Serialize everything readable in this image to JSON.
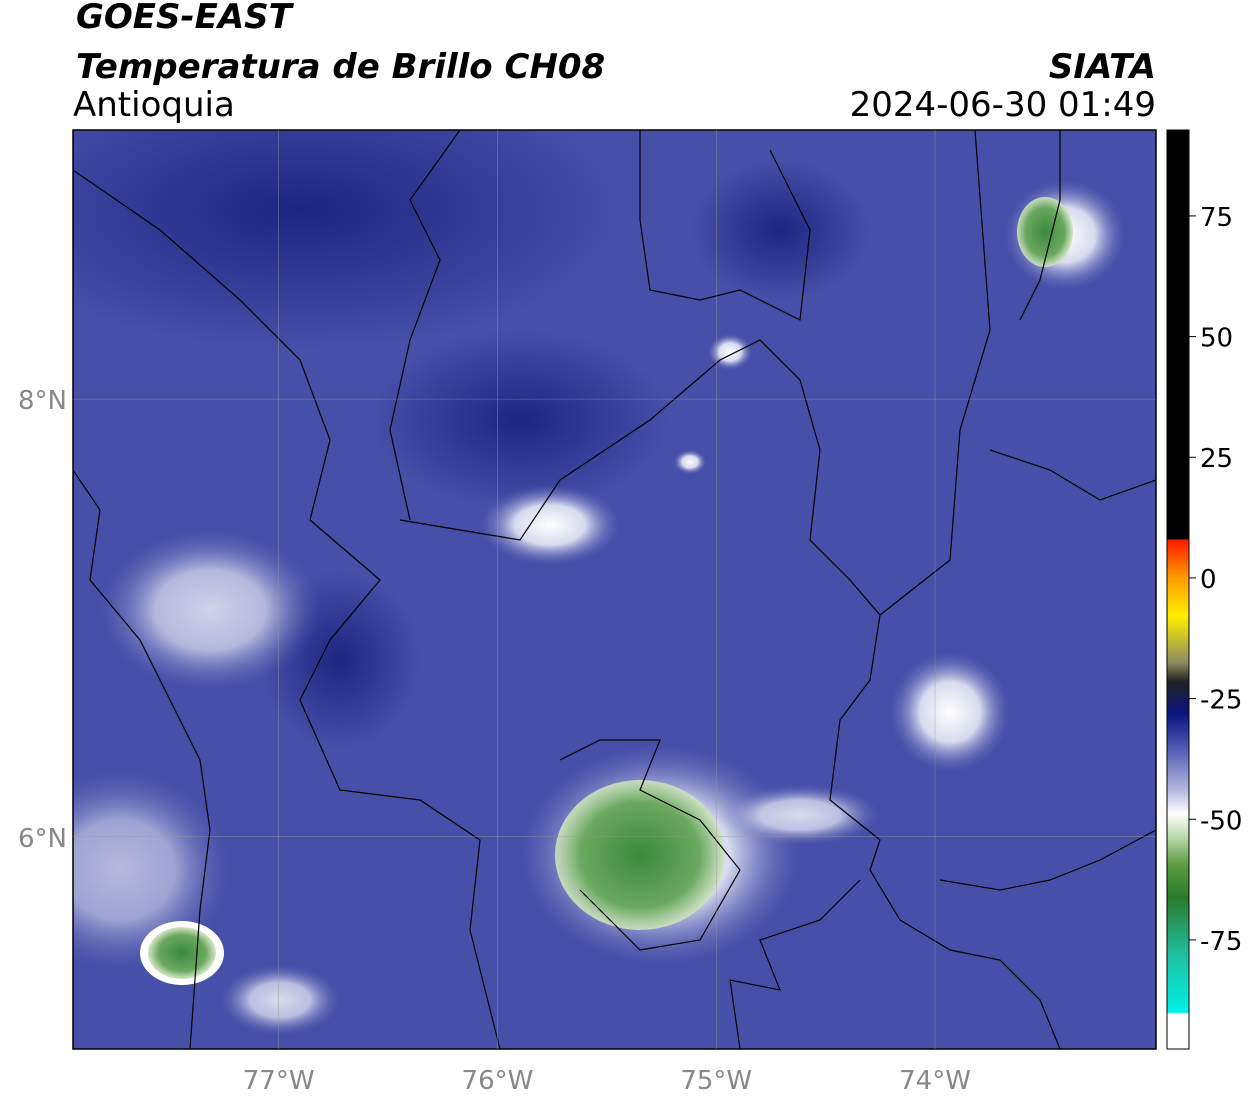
{
  "map": {
    "title": "GOES-EAST",
    "subtitle": "Temperatura de Brillo CH08",
    "region": "Antioquia",
    "source": "SIATA",
    "timestamp": "2024-06-30 01:49",
    "xlim": [
      -77.94,
      -72.99
    ],
    "ylim": [
      5.03,
      9.23
    ],
    "xticks": [
      {
        "value": -77,
        "label": "77°W"
      },
      {
        "value": -76,
        "label": "76°W"
      },
      {
        "value": -75,
        "label": "75°W"
      },
      {
        "value": -74,
        "label": "74°W"
      }
    ],
    "yticks": [
      {
        "value": 6,
        "label": "6°N"
      },
      {
        "value": 8,
        "label": "8°N"
      }
    ],
    "grid": true,
    "colorbar": {
      "lim": [
        -97.6,
        92.8
      ],
      "ticks": [
        -75,
        -50,
        -25,
        0,
        25,
        50,
        75
      ]
    }
  }
}
